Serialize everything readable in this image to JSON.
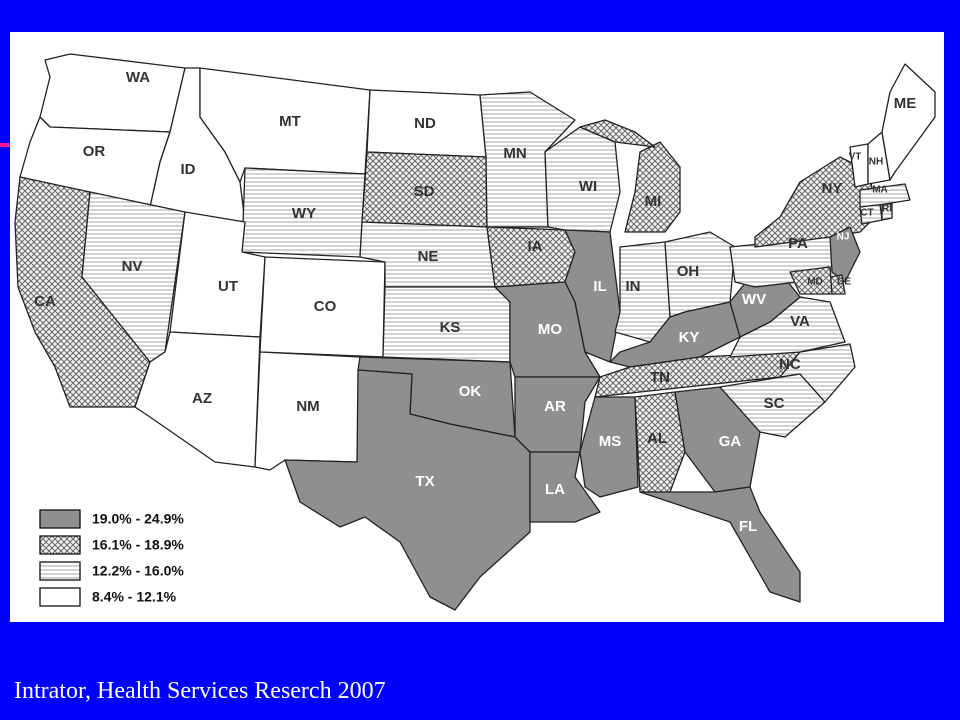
{
  "citation": "Intrator, Health Services Reserch 2007",
  "categories": {
    "c1": {
      "label": "19.0% - 24.9%",
      "color": "#8f8f8f"
    },
    "c2": {
      "label": "16.1% - 18.9%",
      "pattern": "crosshatch"
    },
    "c3": {
      "label": "12.2% - 16.0%",
      "pattern": "horizontal-lines"
    },
    "c4": {
      "label": "8.4% - 12.1%",
      "color": "#ffffff"
    }
  },
  "legend_order": [
    "c1",
    "c2",
    "c3",
    "c4"
  ],
  "states": [
    {
      "abbr": "WA",
      "cat": "c4"
    },
    {
      "abbr": "OR",
      "cat": "c4"
    },
    {
      "abbr": "CA",
      "cat": "c2"
    },
    {
      "abbr": "ID",
      "cat": "c4"
    },
    {
      "abbr": "NV",
      "cat": "c3"
    },
    {
      "abbr": "MT",
      "cat": "c4"
    },
    {
      "abbr": "WY",
      "cat": "c3"
    },
    {
      "abbr": "UT",
      "cat": "c4"
    },
    {
      "abbr": "AZ",
      "cat": "c4"
    },
    {
      "abbr": "CO",
      "cat": "c4"
    },
    {
      "abbr": "NM",
      "cat": "c4"
    },
    {
      "abbr": "ND",
      "cat": "c4"
    },
    {
      "abbr": "SD",
      "cat": "c2"
    },
    {
      "abbr": "NE",
      "cat": "c3"
    },
    {
      "abbr": "KS",
      "cat": "c3"
    },
    {
      "abbr": "OK",
      "cat": "c1"
    },
    {
      "abbr": "TX",
      "cat": "c1"
    },
    {
      "abbr": "MN",
      "cat": "c3"
    },
    {
      "abbr": "IA",
      "cat": "c2"
    },
    {
      "abbr": "MO",
      "cat": "c1"
    },
    {
      "abbr": "AR",
      "cat": "c1"
    },
    {
      "abbr": "LA",
      "cat": "c1"
    },
    {
      "abbr": "WI",
      "cat": "c3"
    },
    {
      "abbr": "IL",
      "cat": "c1"
    },
    {
      "abbr": "MI",
      "cat": "c2"
    },
    {
      "abbr": "IN",
      "cat": "c3"
    },
    {
      "abbr": "OH",
      "cat": "c3"
    },
    {
      "abbr": "KY",
      "cat": "c1"
    },
    {
      "abbr": "TN",
      "cat": "c2"
    },
    {
      "abbr": "MS",
      "cat": "c1"
    },
    {
      "abbr": "AL",
      "cat": "c2"
    },
    {
      "abbr": "GA",
      "cat": "c1"
    },
    {
      "abbr": "FL",
      "cat": "c1"
    },
    {
      "abbr": "SC",
      "cat": "c3"
    },
    {
      "abbr": "NC",
      "cat": "c3"
    },
    {
      "abbr": "VA",
      "cat": "c3"
    },
    {
      "abbr": "WV",
      "cat": "c1"
    },
    {
      "abbr": "PA",
      "cat": "c3"
    },
    {
      "abbr": "NY",
      "cat": "c2"
    },
    {
      "abbr": "NJ",
      "cat": "c1"
    },
    {
      "abbr": "DE",
      "cat": "c2"
    },
    {
      "abbr": "MD",
      "cat": "c2"
    },
    {
      "abbr": "CT",
      "cat": "c3"
    },
    {
      "abbr": "RI",
      "cat": "c3"
    },
    {
      "abbr": "MA",
      "cat": "c3"
    },
    {
      "abbr": "VT",
      "cat": "c4"
    },
    {
      "abbr": "NH",
      "cat": "c4"
    },
    {
      "abbr": "ME",
      "cat": "c4"
    }
  ]
}
